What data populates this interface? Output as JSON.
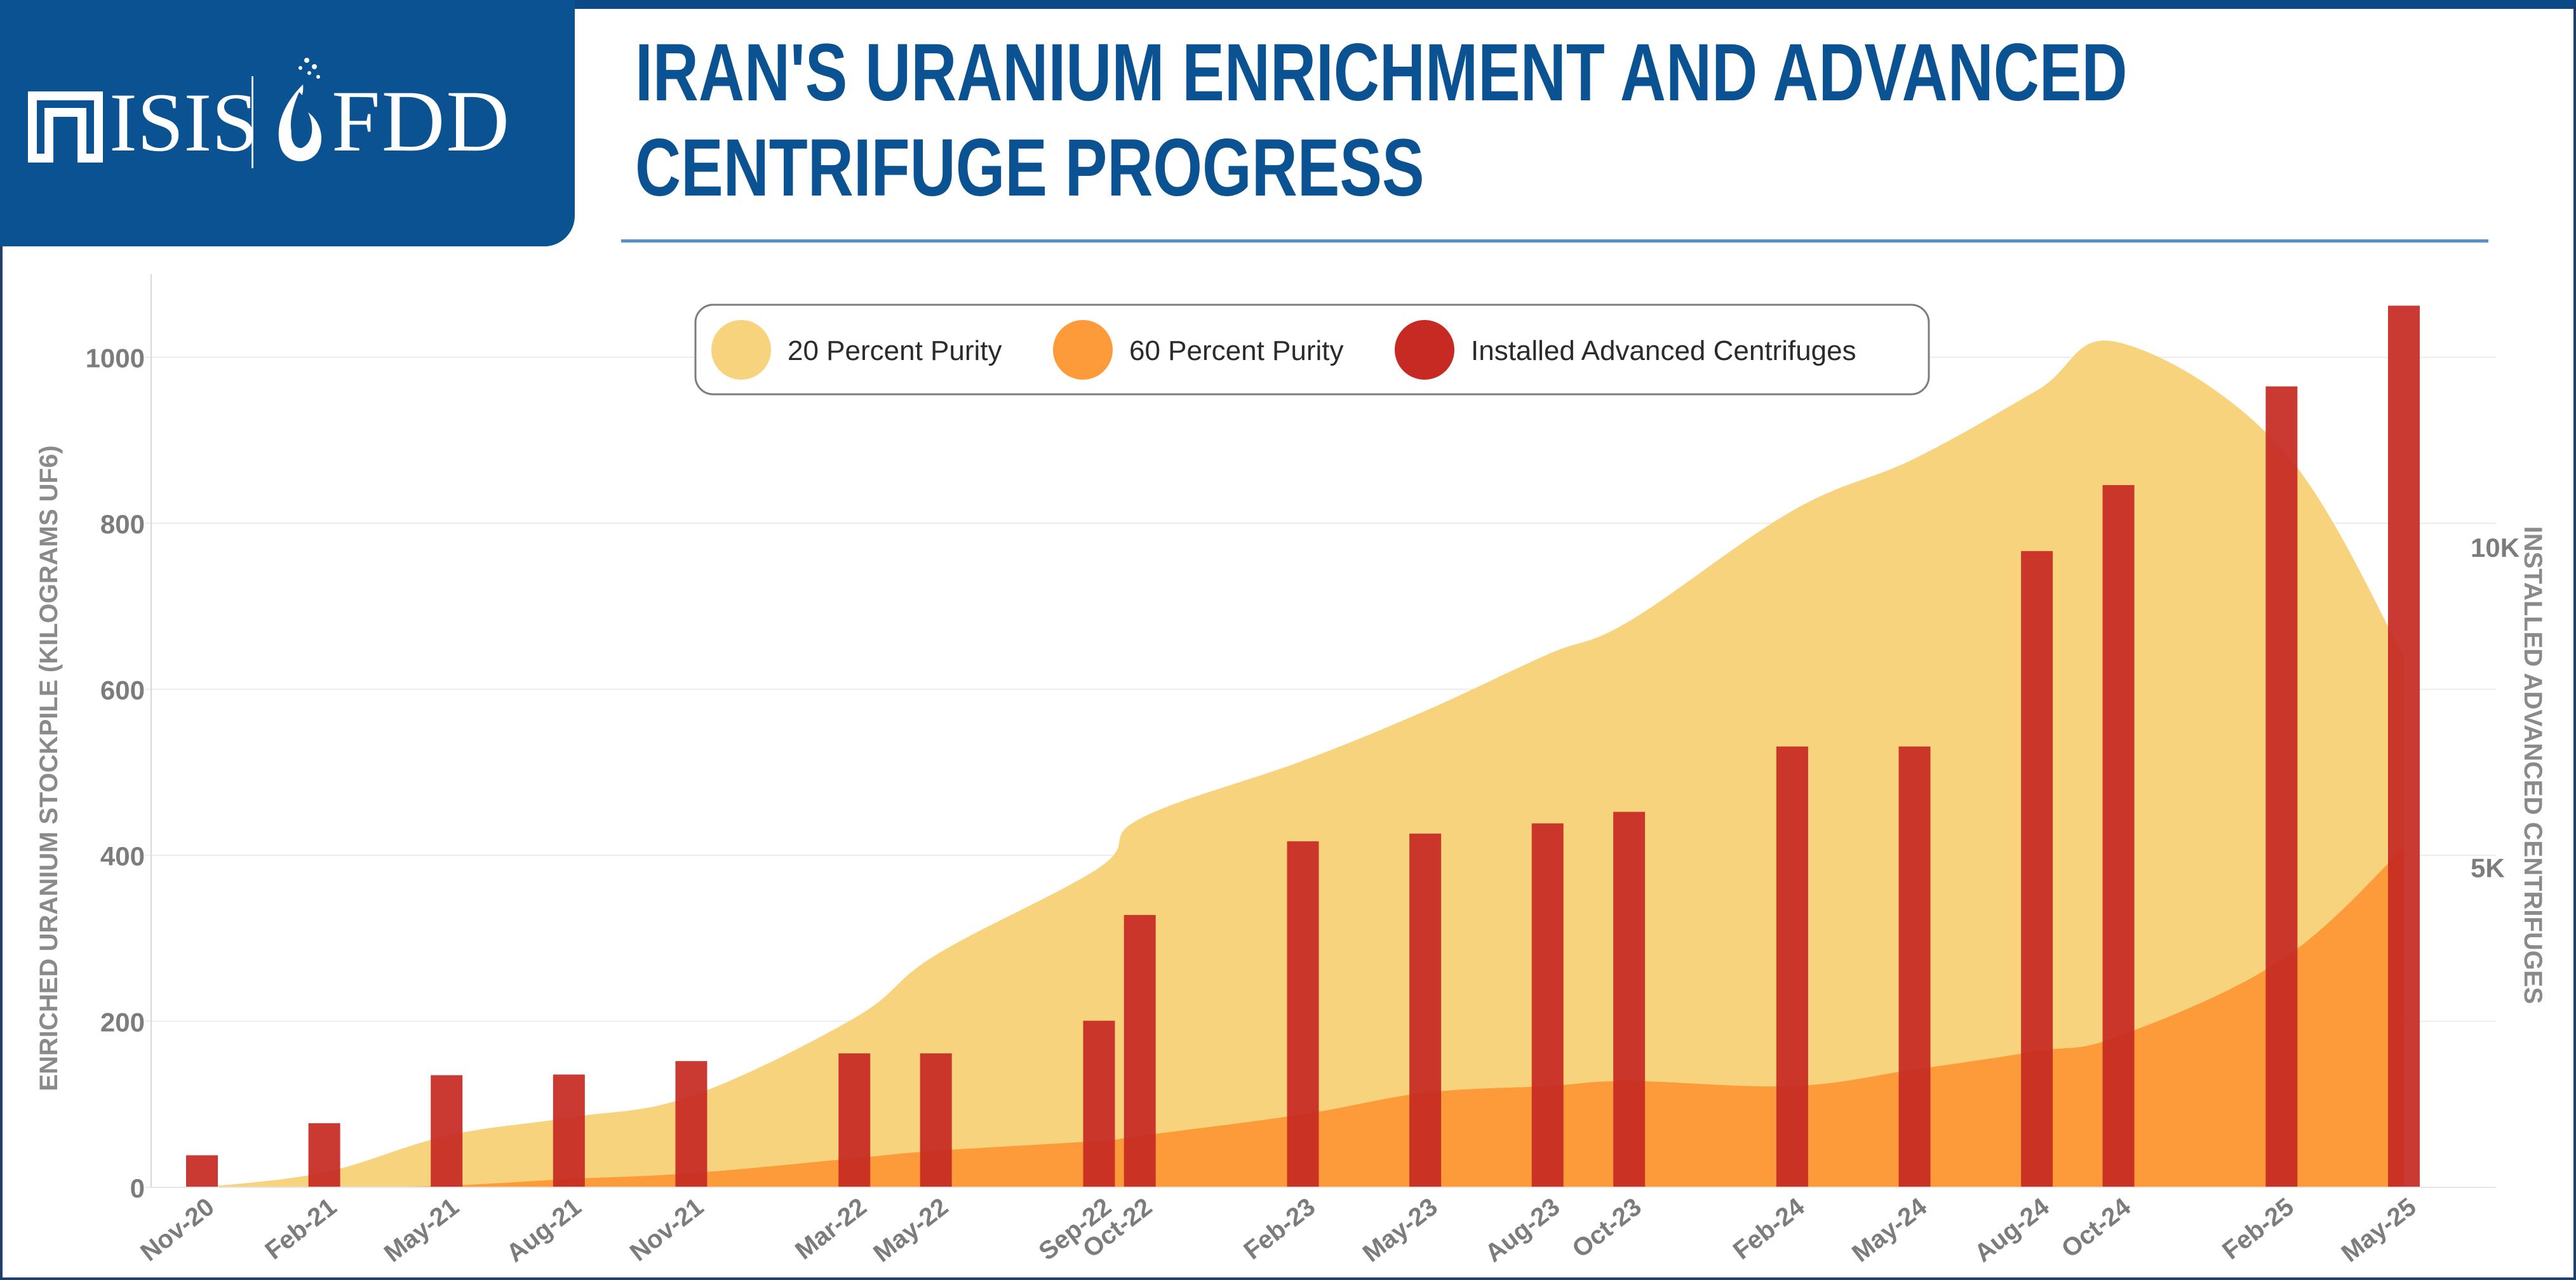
{
  "header": {
    "logo_left": "ISIS",
    "logo_right": "FDD",
    "title_line1": "IRAN'S URANIUM ENRICHMENT AND ADVANCED",
    "title_line2": "CENTRIFUGE PROGRESS"
  },
  "colors": {
    "header_blue": "#0a5291",
    "purity20": "#f7d37d",
    "purity60": "#fd9b3a",
    "centrifuges": "#c62a22"
  },
  "chart_data": {
    "type": "area",
    "title": "IRAN'S URANIUM ENRICHMENT AND ADVANCED CENTRIFUGE PROGRESS",
    "ylabel": "ENRICHED URANIUM STOCKPILE (KILOGRAMS UF6)",
    "ylabel_right": "INSTALLED ADVANCED CENTRIFUGES",
    "ylim": [
      0,
      1100
    ],
    "yticks": [
      0,
      200,
      400,
      600,
      800,
      1000
    ],
    "y2lim": [
      0,
      14250
    ],
    "y2ticks": [
      5000,
      10000
    ],
    "y2ticklabels": [
      "5K",
      "10K"
    ],
    "legend_position": "top-center",
    "categories": [
      "Nov-20",
      "Feb-21",
      "May-21",
      "Aug-21",
      "Nov-21",
      "Mar-22",
      "May-22",
      "Sep-22",
      "Oct-22",
      "Feb-23",
      "May-23",
      "Aug-23",
      "Oct-23",
      "Feb-24",
      "May-24",
      "Aug-24",
      "Oct-24",
      "Feb-25",
      "May-25"
    ],
    "month_index": [
      0,
      3,
      6,
      9,
      12,
      16,
      18,
      22,
      23,
      27,
      30,
      33,
      35,
      39,
      42,
      45,
      47,
      51,
      54
    ],
    "series": [
      {
        "name": "20 Percent Purity",
        "kind": "area",
        "axis": "left",
        "values": [
          0,
          18,
          62,
          84,
          110,
          204,
          280,
          385,
          444,
          514,
          574,
          642,
          682,
          815,
          878,
          960,
          1018,
          890,
          640
        ]
      },
      {
        "name": "60 Percent Purity",
        "kind": "area",
        "axis": "left",
        "values": [
          0,
          0,
          2,
          10,
          17,
          35,
          44,
          56,
          62,
          88,
          114,
          122,
          128,
          122,
          142,
          164,
          182,
          274,
          409
        ]
      },
      {
        "name": "Installed Advanced Centrifuges",
        "kind": "bar",
        "axis": "right",
        "values": [
          500,
          1000,
          1750,
          1760,
          1970,
          2090,
          2090,
          2600,
          4250,
          5400,
          5520,
          5680,
          5860,
          6880,
          6880,
          9930,
          10960,
          12500,
          13760
        ]
      }
    ]
  }
}
